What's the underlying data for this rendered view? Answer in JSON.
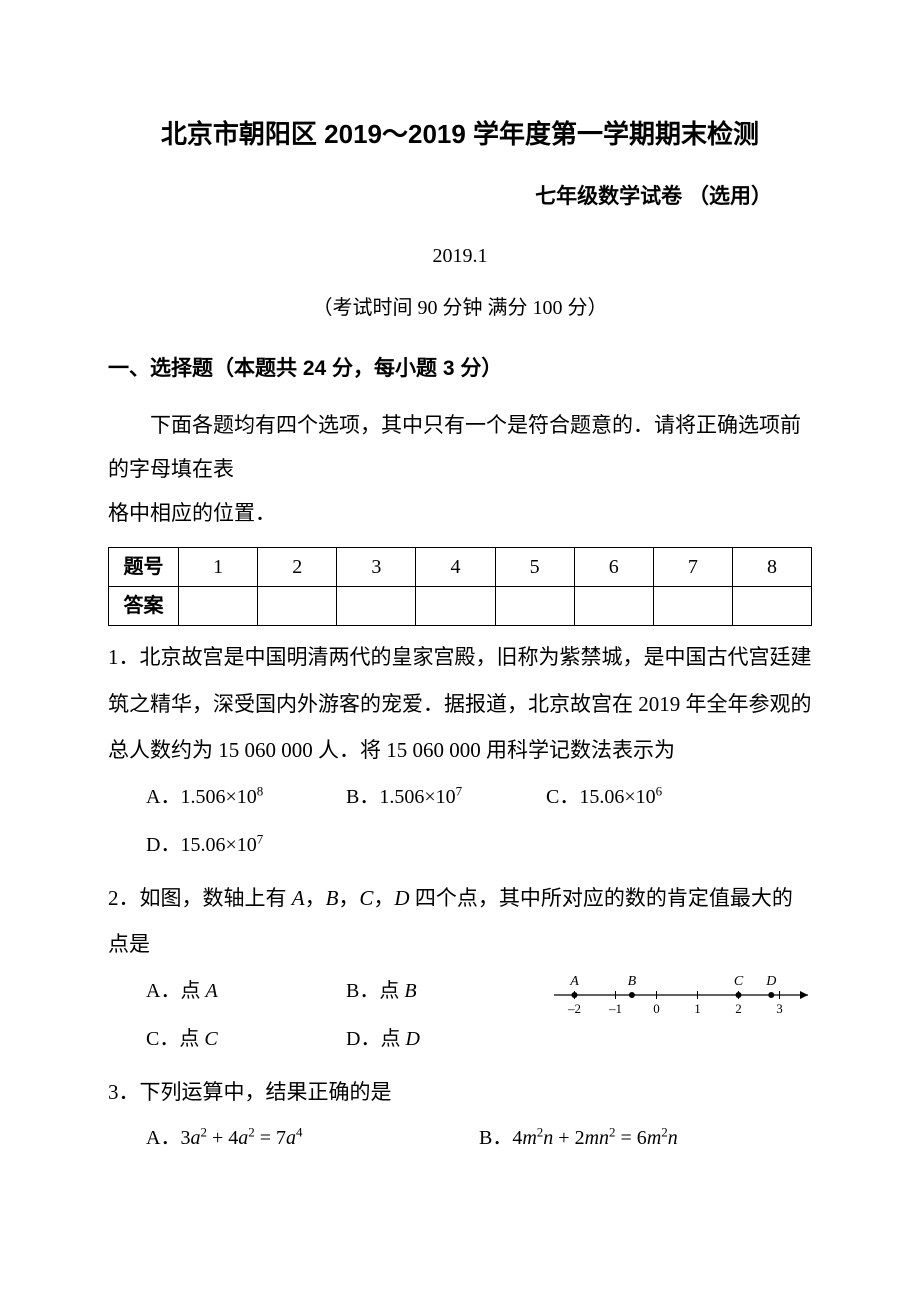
{
  "header": {
    "title": "北京市朝阳区 2019～2019 学年度第一学期期末检测",
    "subtitle": "七年级数学试卷 （选用）",
    "date": "2019.1",
    "exam_info": "（考试时间 90 分钟  满分 100 分）"
  },
  "section1": {
    "title": "一、选择题（本题共 24 分，每小题 3 分）",
    "instructions_line1": "下面各题均有四个选项，其中只有一个是符合题意的．请将正确选项前的字母填在表",
    "instructions_line2": "格中相应的位置．",
    "table": {
      "row1_label": "题号",
      "row2_label": "答案",
      "cols": [
        "1",
        "2",
        "3",
        "4",
        "5",
        "6",
        "7",
        "8"
      ]
    }
  },
  "q1": {
    "text": "1．北京故宫是中国明清两代的皇家宫殿，旧称为紫禁城，是中国古代宫廷建筑之精华，深受国内外游客的宠爱．据报道，北京故宫在 2019 年全年参观的总人数约为 15 060 000 人．将 15 060 000 用科学记数法表示为",
    "optA_label": "A．",
    "optA_val": "1.506×10",
    "optA_exp": "8",
    "optB_label": "B．",
    "optB_val": "1.506×10",
    "optB_exp": "7",
    "optC_label": "C．",
    "optC_val": "15.06×10",
    "optC_exp": "6",
    "optD_label": "D．",
    "optD_val": "15.06×10",
    "optD_exp": "7"
  },
  "q2": {
    "text_prefix": "2．如图，数轴上有 ",
    "text_mid": "，",
    "text_suffix": " 四个点，其中所对应的数的肯定值最大的点是",
    "A": "A",
    "B": "B",
    "C": "C",
    "D": "D",
    "optA": "A．点 ",
    "optA_pt": "A",
    "optB": "B．点 ",
    "optB_pt": "B",
    "optC": "C．点 ",
    "optC_pt": "C",
    "optD": "D．点 ",
    "optD_pt": "D",
    "numberline": {
      "ticks": [
        -2,
        -1,
        0,
        1,
        2,
        3
      ],
      "points": {
        "A": -2,
        "B": -0.6,
        "C": 2,
        "D": 2.8
      },
      "line_color": "#000000",
      "tick_fontsize": 13,
      "label_fontsize": 14
    }
  },
  "q3": {
    "text": "3．下列运算中，结果正确的是",
    "optA_label": "A．",
    "optB_label": "B．"
  }
}
